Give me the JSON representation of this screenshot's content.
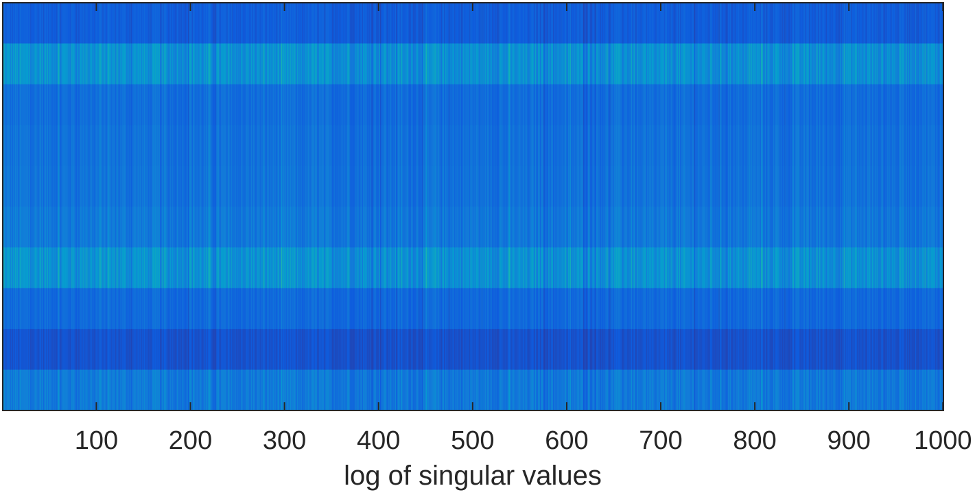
{
  "chart_data": {
    "type": "heatmap",
    "title": "",
    "xlabel": "log of singular values",
    "ylabel": "",
    "xlim": [
      0.5,
      1000.5
    ],
    "x_ticks": [
      100,
      200,
      300,
      400,
      500,
      600,
      700,
      800,
      900,
      1000
    ],
    "x_tick_labels": [
      "100",
      "200",
      "300",
      "400",
      "500",
      "600",
      "700",
      "800",
      "900",
      "1000"
    ],
    "rows": 10,
    "columns": 1000,
    "colormap": "parula",
    "y_ticks_shown": false,
    "colorbar_shown": false,
    "row_brightness": [
      0.18,
      0.46,
      0.26,
      0.28,
      0.29,
      0.32,
      0.47,
      0.24,
      0.13,
      0.33
    ],
    "grid": false
  }
}
